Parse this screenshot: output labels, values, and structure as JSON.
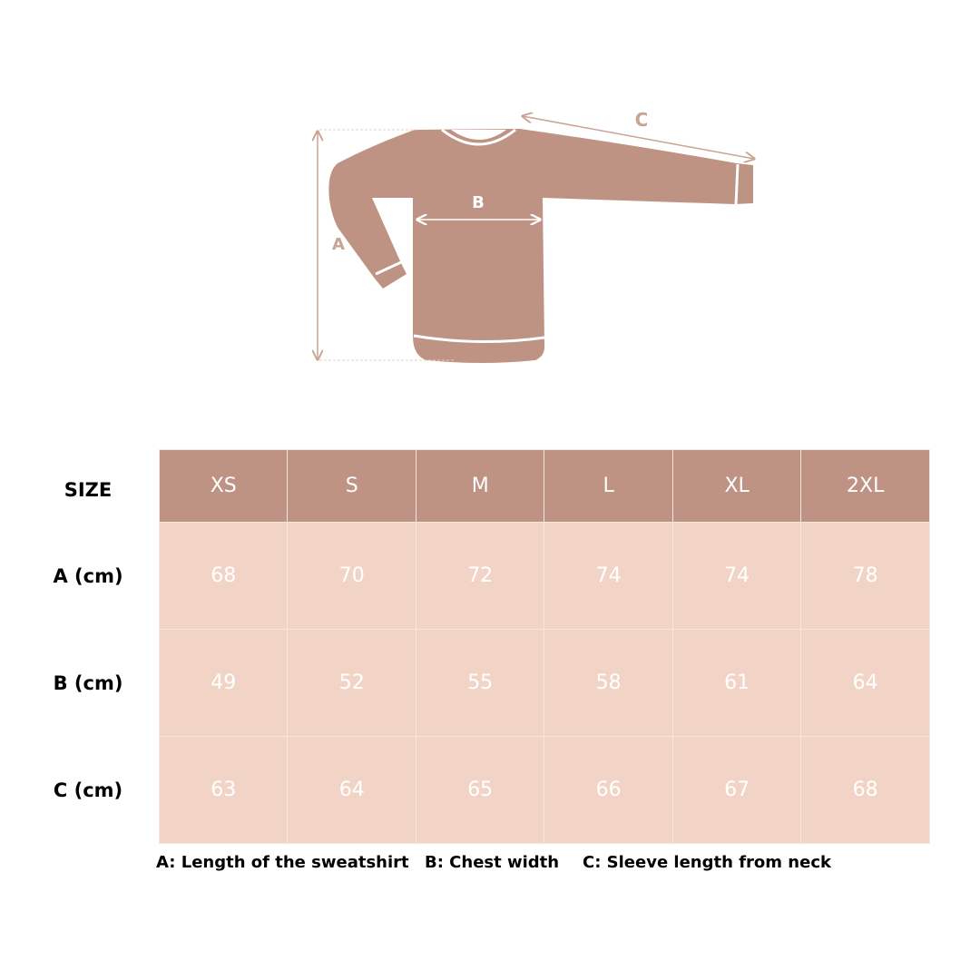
{
  "colors": {
    "shirt": "#bf9383",
    "header": "#bf9383",
    "cell": "#f2d4c7",
    "text_on_cells": "#ffffff"
  },
  "diagram": {
    "label_a": "A",
    "label_b": "B",
    "label_c": "C"
  },
  "table": {
    "size_label": "SIZE",
    "sizes": [
      "XS",
      "S",
      "M",
      "L",
      "XL",
      "2XL"
    ],
    "rows": [
      {
        "label": "A (cm)",
        "values": [
          "68",
          "70",
          "72",
          "74",
          "74",
          "78"
        ]
      },
      {
        "label": "B (cm)",
        "values": [
          "49",
          "52",
          "55",
          "58",
          "61",
          "64"
        ]
      },
      {
        "label": "C (cm)",
        "values": [
          "63",
          "64",
          "65",
          "66",
          "67",
          "68"
        ]
      }
    ]
  },
  "legend": {
    "a": "A: Length of the sweatshirt",
    "b": "B: Chest width",
    "c": "C: Sleeve length from neck"
  }
}
